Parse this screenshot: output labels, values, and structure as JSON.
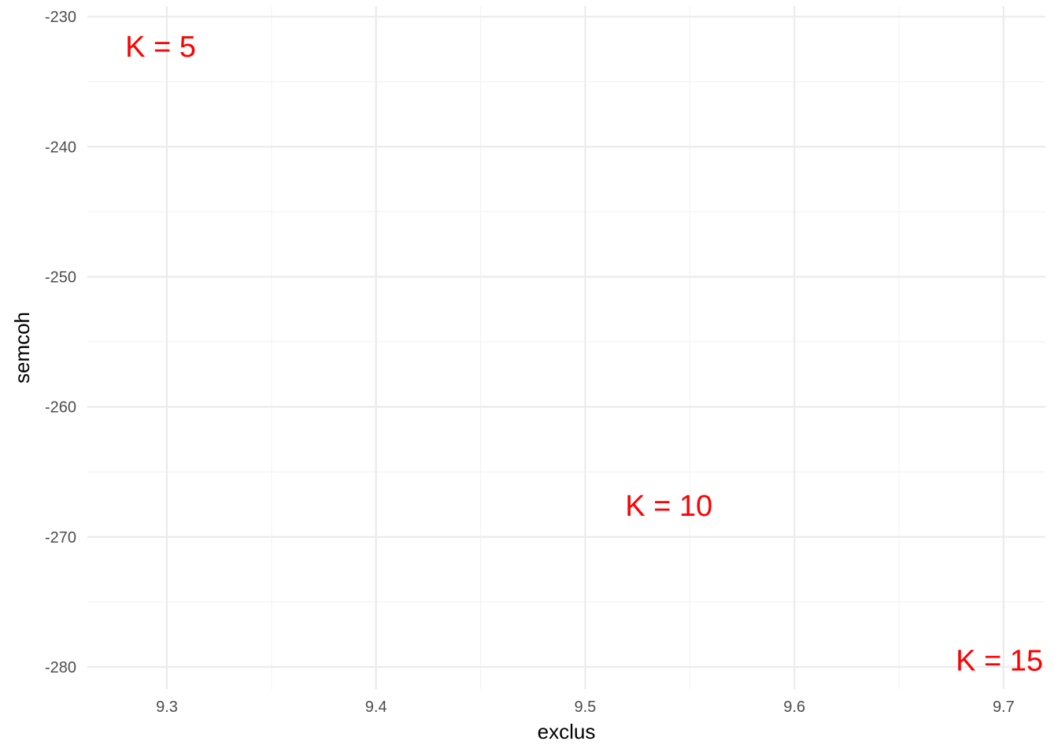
{
  "chart_data": {
    "type": "scatter",
    "title": "",
    "xlabel": "exclus",
    "ylabel": "semcoh",
    "xlim": [
      9.262,
      9.72
    ],
    "ylim": [
      -281.7,
      -229.2
    ],
    "x_ticks": [
      9.3,
      9.4,
      9.5,
      9.6,
      9.7
    ],
    "x_tick_labels": [
      "9.3",
      "9.4",
      "9.5",
      "9.6",
      "9.7"
    ],
    "y_ticks": [
      -230,
      -240,
      -250,
      -260,
      -270,
      -280
    ],
    "y_tick_labels": [
      "-230",
      "-240",
      "-250",
      "-260",
      "-270",
      "-280"
    ],
    "grid": true,
    "label_color": "#ff0000",
    "points": [
      {
        "label": "K = 5",
        "x": 9.297,
        "y": -232.3
      },
      {
        "label": "K = 10",
        "x": 9.54,
        "y": -267.6
      },
      {
        "label": "K = 15",
        "x": 9.698,
        "y": -279.5
      }
    ]
  }
}
